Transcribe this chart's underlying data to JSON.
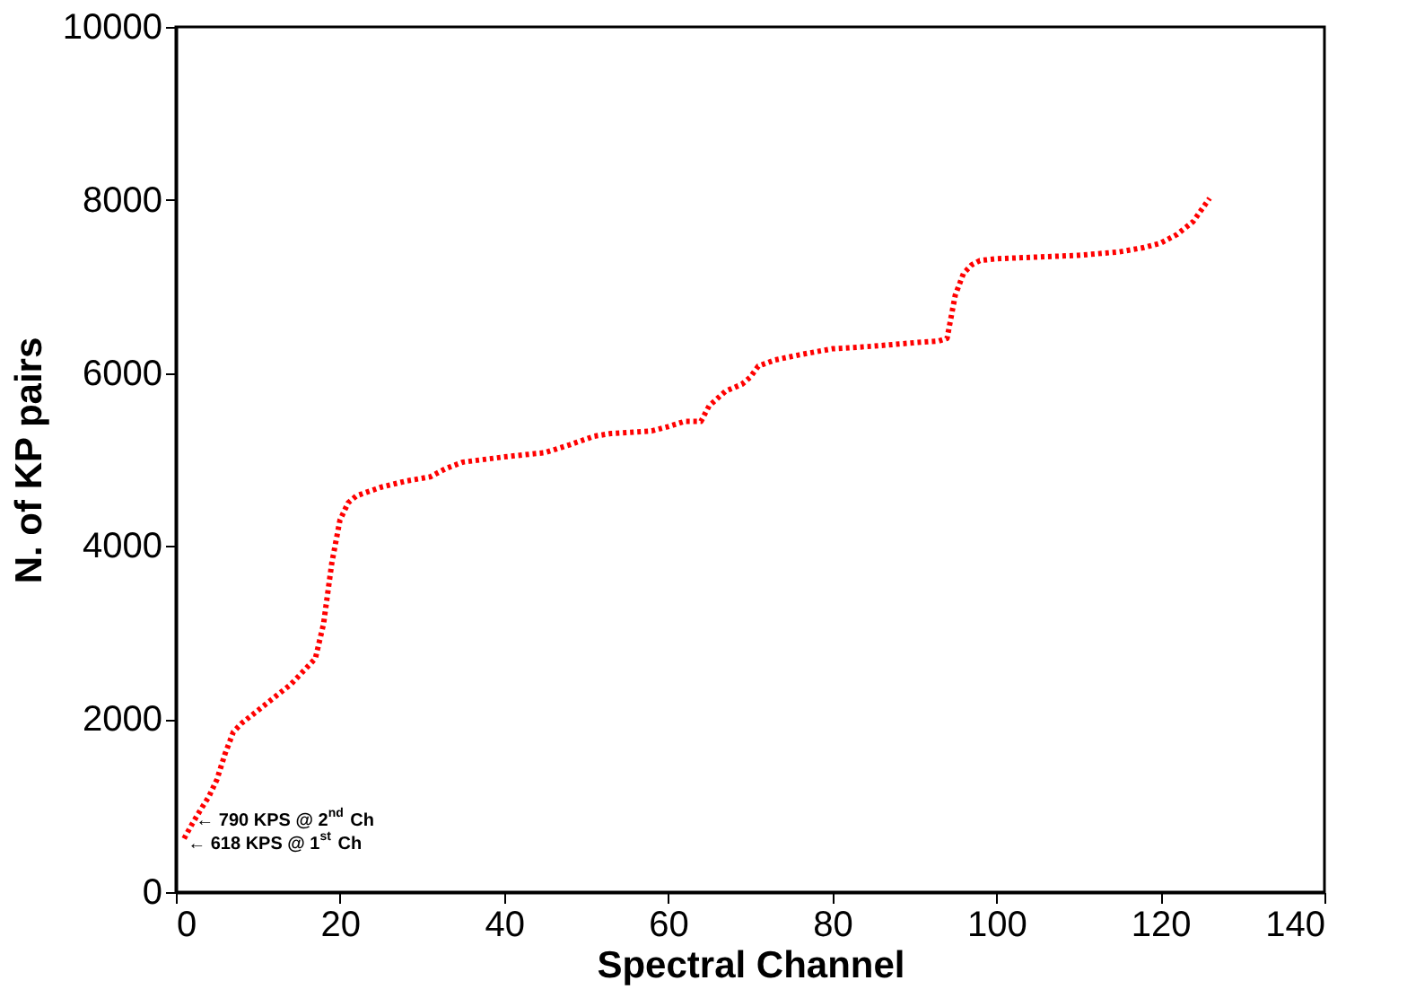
{
  "chart_data": {
    "type": "line",
    "xlabel": "Spectral Channel",
    "ylabel": "N. of KP pairs",
    "xlim": [
      0,
      140
    ],
    "xticks": [
      0,
      20,
      40,
      60,
      80,
      100,
      120,
      140
    ],
    "ylim": [
      0,
      10000
    ],
    "yticks": [
      0,
      2000,
      4000,
      6000,
      8000,
      10000
    ],
    "grid": false,
    "line_style": "dotted",
    "series": [
      {
        "color": "#ff0000",
        "x": [
          1,
          2,
          3,
          4,
          5,
          6,
          7,
          8,
          10,
          12,
          14,
          16,
          17,
          18,
          19,
          20,
          21,
          22,
          25,
          28,
          31,
          33,
          35,
          40,
          45,
          48,
          51,
          53,
          58,
          60,
          62,
          64,
          65,
          67,
          69,
          70,
          71,
          73,
          76,
          80,
          85,
          90,
          93,
          94,
          95,
          96,
          97,
          98,
          100,
          105,
          110,
          115,
          118,
          120,
          122,
          124,
          126
        ],
        "values": [
          618,
          790,
          950,
          1100,
          1300,
          1600,
          1850,
          1950,
          2100,
          2250,
          2400,
          2600,
          2700,
          3100,
          3800,
          4300,
          4500,
          4580,
          4680,
          4750,
          4800,
          4900,
          4970,
          5030,
          5080,
          5170,
          5270,
          5300,
          5330,
          5380,
          5440,
          5440,
          5620,
          5790,
          5870,
          5950,
          6080,
          6150,
          6210,
          6280,
          6310,
          6350,
          6370,
          6400,
          6900,
          7150,
          7250,
          7300,
          7320,
          7340,
          7360,
          7400,
          7450,
          7500,
          7600,
          7750,
          8020
        ]
      }
    ],
    "annotations": [
      {
        "text": "← 790 KPS @ 2$^{nd}$ Ch",
        "x": 2,
        "y": 790
      },
      {
        "text": "← 618 KPS @ 1$^{st}$ Ch",
        "x": 1,
        "y": 618
      }
    ]
  }
}
